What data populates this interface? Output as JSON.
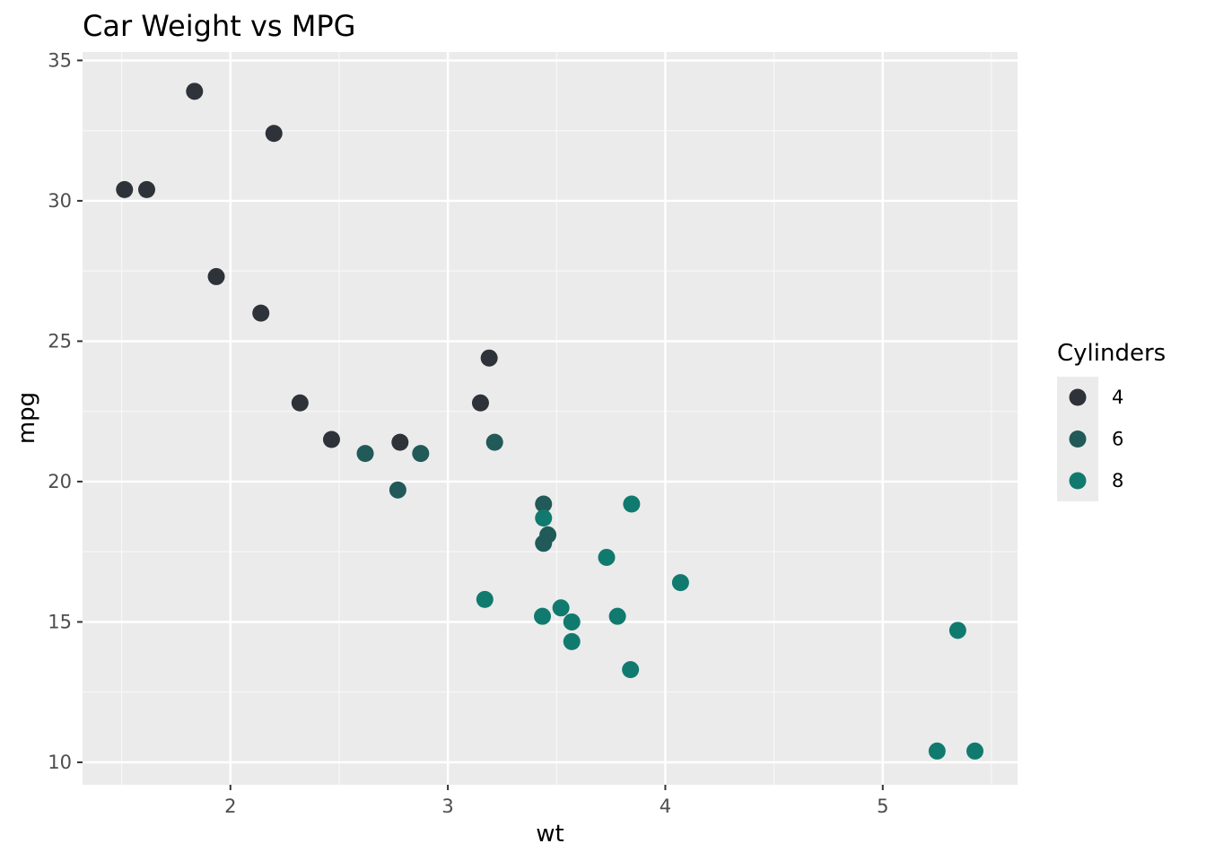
{
  "chart_data": {
    "type": "scatter",
    "title": "Car Weight vs MPG",
    "xlabel": "wt",
    "ylabel": "mpg",
    "xlim": [
      1.32,
      5.62
    ],
    "ylim": [
      9.2,
      35.3
    ],
    "x_ticks": [
      2,
      3,
      4,
      5
    ],
    "x_tick_labels": [
      "2",
      "3",
      "4",
      "5"
    ],
    "y_ticks": [
      10,
      15,
      20,
      25,
      30,
      35
    ],
    "y_tick_labels": [
      "10",
      "15",
      "20",
      "25",
      "30",
      "35"
    ],
    "grid": true,
    "legend": {
      "title": "Cylinders",
      "placement": "right",
      "entries": [
        {
          "label": "4",
          "color": "#2e3239"
        },
        {
          "label": "6",
          "color": "#215a58"
        },
        {
          "label": "8",
          "color": "#117a6f"
        }
      ]
    },
    "series": [
      {
        "name": "4",
        "color": "#2e3239",
        "points": [
          {
            "x": 1.513,
            "y": 30.4
          },
          {
            "x": 1.615,
            "y": 30.4
          },
          {
            "x": 1.835,
            "y": 33.9
          },
          {
            "x": 1.935,
            "y": 27.3
          },
          {
            "x": 2.2,
            "y": 32.4
          },
          {
            "x": 2.14,
            "y": 26.0
          },
          {
            "x": 2.32,
            "y": 22.8
          },
          {
            "x": 2.465,
            "y": 21.5
          },
          {
            "x": 2.78,
            "y": 21.4
          },
          {
            "x": 3.15,
            "y": 22.8
          },
          {
            "x": 3.19,
            "y": 24.4
          }
        ]
      },
      {
        "name": "6",
        "color": "#215a58",
        "points": [
          {
            "x": 2.62,
            "y": 21.0
          },
          {
            "x": 2.875,
            "y": 21.0
          },
          {
            "x": 2.77,
            "y": 19.7
          },
          {
            "x": 3.215,
            "y": 21.4
          },
          {
            "x": 3.44,
            "y": 19.2
          },
          {
            "x": 3.46,
            "y": 18.1
          },
          {
            "x": 3.44,
            "y": 17.8
          }
        ]
      },
      {
        "name": "8",
        "color": "#117a6f",
        "points": [
          {
            "x": 3.44,
            "y": 18.7
          },
          {
            "x": 3.57,
            "y": 14.3
          },
          {
            "x": 4.07,
            "y": 16.4
          },
          {
            "x": 3.73,
            "y": 17.3
          },
          {
            "x": 3.78,
            "y": 15.2
          },
          {
            "x": 5.25,
            "y": 10.4
          },
          {
            "x": 5.424,
            "y": 10.4
          },
          {
            "x": 5.345,
            "y": 14.7
          },
          {
            "x": 3.52,
            "y": 15.5
          },
          {
            "x": 3.435,
            "y": 15.2
          },
          {
            "x": 3.84,
            "y": 13.3
          },
          {
            "x": 3.845,
            "y": 19.2
          },
          {
            "x": 3.17,
            "y": 15.8
          },
          {
            "x": 3.57,
            "y": 15.0
          }
        ]
      }
    ]
  }
}
